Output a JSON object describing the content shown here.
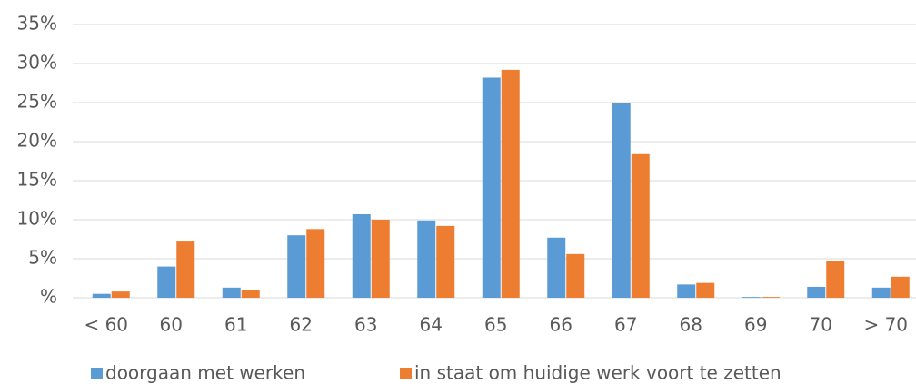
{
  "chart_data": {
    "type": "bar",
    "categories": [
      "< 60",
      "60",
      "61",
      "62",
      "63",
      "64",
      "65",
      "66",
      "67",
      "68",
      "69",
      "70",
      "> 70"
    ],
    "series": [
      {
        "name": "doorgaan met werken",
        "color": "#5b9bd5",
        "values": [
          0.5,
          4.0,
          1.3,
          8.0,
          10.7,
          9.9,
          28.2,
          7.7,
          25.0,
          1.7,
          0.1,
          1.4,
          1.3
        ]
      },
      {
        "name": "in staat om huidige werk voort te zetten",
        "color": "#ed7d31",
        "values": [
          0.8,
          7.2,
          1.0,
          8.8,
          10.0,
          9.2,
          29.2,
          5.6,
          18.4,
          1.9,
          0.1,
          4.7,
          2.7
        ]
      }
    ],
    "ylim": [
      0,
      35
    ],
    "yticks": [
      {
        "value": 0,
        "label": "%"
      },
      {
        "value": 5,
        "label": "5%"
      },
      {
        "value": 10,
        "label": "10%"
      },
      {
        "value": 15,
        "label": "15%"
      },
      {
        "value": 20,
        "label": "20%"
      },
      {
        "value": 25,
        "label": "25%"
      },
      {
        "value": 30,
        "label": "30%"
      },
      {
        "value": 35,
        "label": "35%"
      }
    ],
    "grid": true,
    "legend": "bottom"
  }
}
